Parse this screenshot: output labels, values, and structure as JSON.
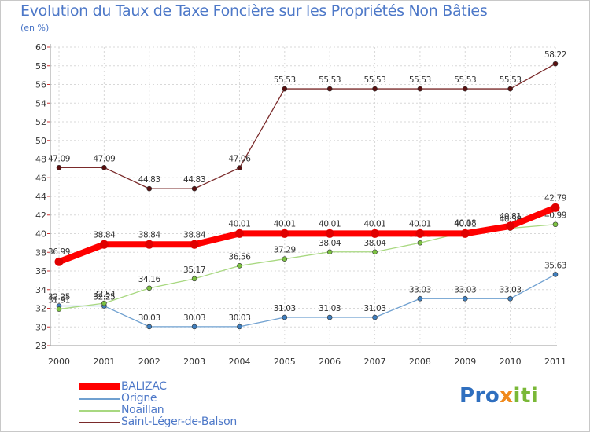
{
  "chart_data": {
    "type": "line",
    "title": "Evolution du Taux de Taxe Foncière sur les Propriétés Non Bâties",
    "unit_label": "(en %)",
    "xlabel": "",
    "ylabel": "",
    "ylim": [
      28,
      60
    ],
    "y_ticks": [
      "28",
      "30",
      "32",
      "34",
      "36",
      "38",
      "40",
      "42",
      "44",
      "46",
      "48",
      "50",
      "52",
      "54",
      "56",
      "58",
      "60"
    ],
    "categories": [
      "2000",
      "2001",
      "2002",
      "2003",
      "2004",
      "2005",
      "2006",
      "2007",
      "2008",
      "2009",
      "2010",
      "2011"
    ],
    "grid": true,
    "legend_position": "bottom-left",
    "series": [
      {
        "name": "Saint-Léger-de-Balson",
        "color": "#7a2a2a",
        "marker": "#5a1010",
        "values": [
          47.09,
          47.09,
          44.83,
          44.83,
          47.06,
          55.53,
          55.53,
          55.53,
          55.53,
          55.53,
          55.53,
          58.22
        ],
        "labels": [
          "47.09",
          "47.09",
          "44.83",
          "44.83",
          "47.06",
          "55.53",
          "55.53",
          "55.53",
          "55.53",
          "55.53",
          "55.53",
          "58.22"
        ]
      },
      {
        "name": "Origne",
        "color": "#6fa0d0",
        "marker": "#3f7fbf",
        "values": [
          32.25,
          32.25,
          30.03,
          30.03,
          30.03,
          31.03,
          31.03,
          31.03,
          33.03,
          33.03,
          33.03,
          35.63
        ],
        "labels": [
          "32.25",
          "32.25",
          "30.03",
          "30.03",
          "30.03",
          "31.03",
          "31.03",
          "31.03",
          "33.03",
          "33.03",
          "33.03",
          "35.63"
        ]
      },
      {
        "name": "Noaillan",
        "color": "#a8d880",
        "marker": "#7cc242",
        "values": [
          31.91,
          32.54,
          34.16,
          35.17,
          36.56,
          37.29,
          38.04,
          38.04,
          39.01,
          40.18,
          40.58,
          40.99
        ],
        "labels": [
          "31.91",
          "32.54",
          "34.16",
          "35.17",
          "36.56",
          "37.29",
          "38.04",
          "38.04",
          "39.01",
          "40.18",
          "40.58",
          "40.99"
        ]
      },
      {
        "name": "BALIZAC",
        "color": "#ff0000",
        "marker": "#e00000",
        "values": [
          36.99,
          38.84,
          38.84,
          38.84,
          40.01,
          40.01,
          40.01,
          40.01,
          40.01,
          40.01,
          40.81,
          42.79
        ],
        "labels": [
          "36.99",
          "38.84",
          "38.84",
          "38.84",
          "40.01",
          "40.01",
          "40.01",
          "40.01",
          "40.01",
          "40.01",
          "40.81",
          "42.79"
        ]
      }
    ],
    "legend": [
      {
        "name": "BALIZAC",
        "color": "#ff0000"
      },
      {
        "name": "Origne",
        "color": "#6fa0d0"
      },
      {
        "name": "Noaillan",
        "color": "#a8d880"
      },
      {
        "name": "Saint-Léger-de-Balson",
        "color": "#7a2a2a"
      }
    ]
  },
  "branding": {
    "logo_parts": [
      "Pro",
      "x",
      "iti"
    ]
  }
}
